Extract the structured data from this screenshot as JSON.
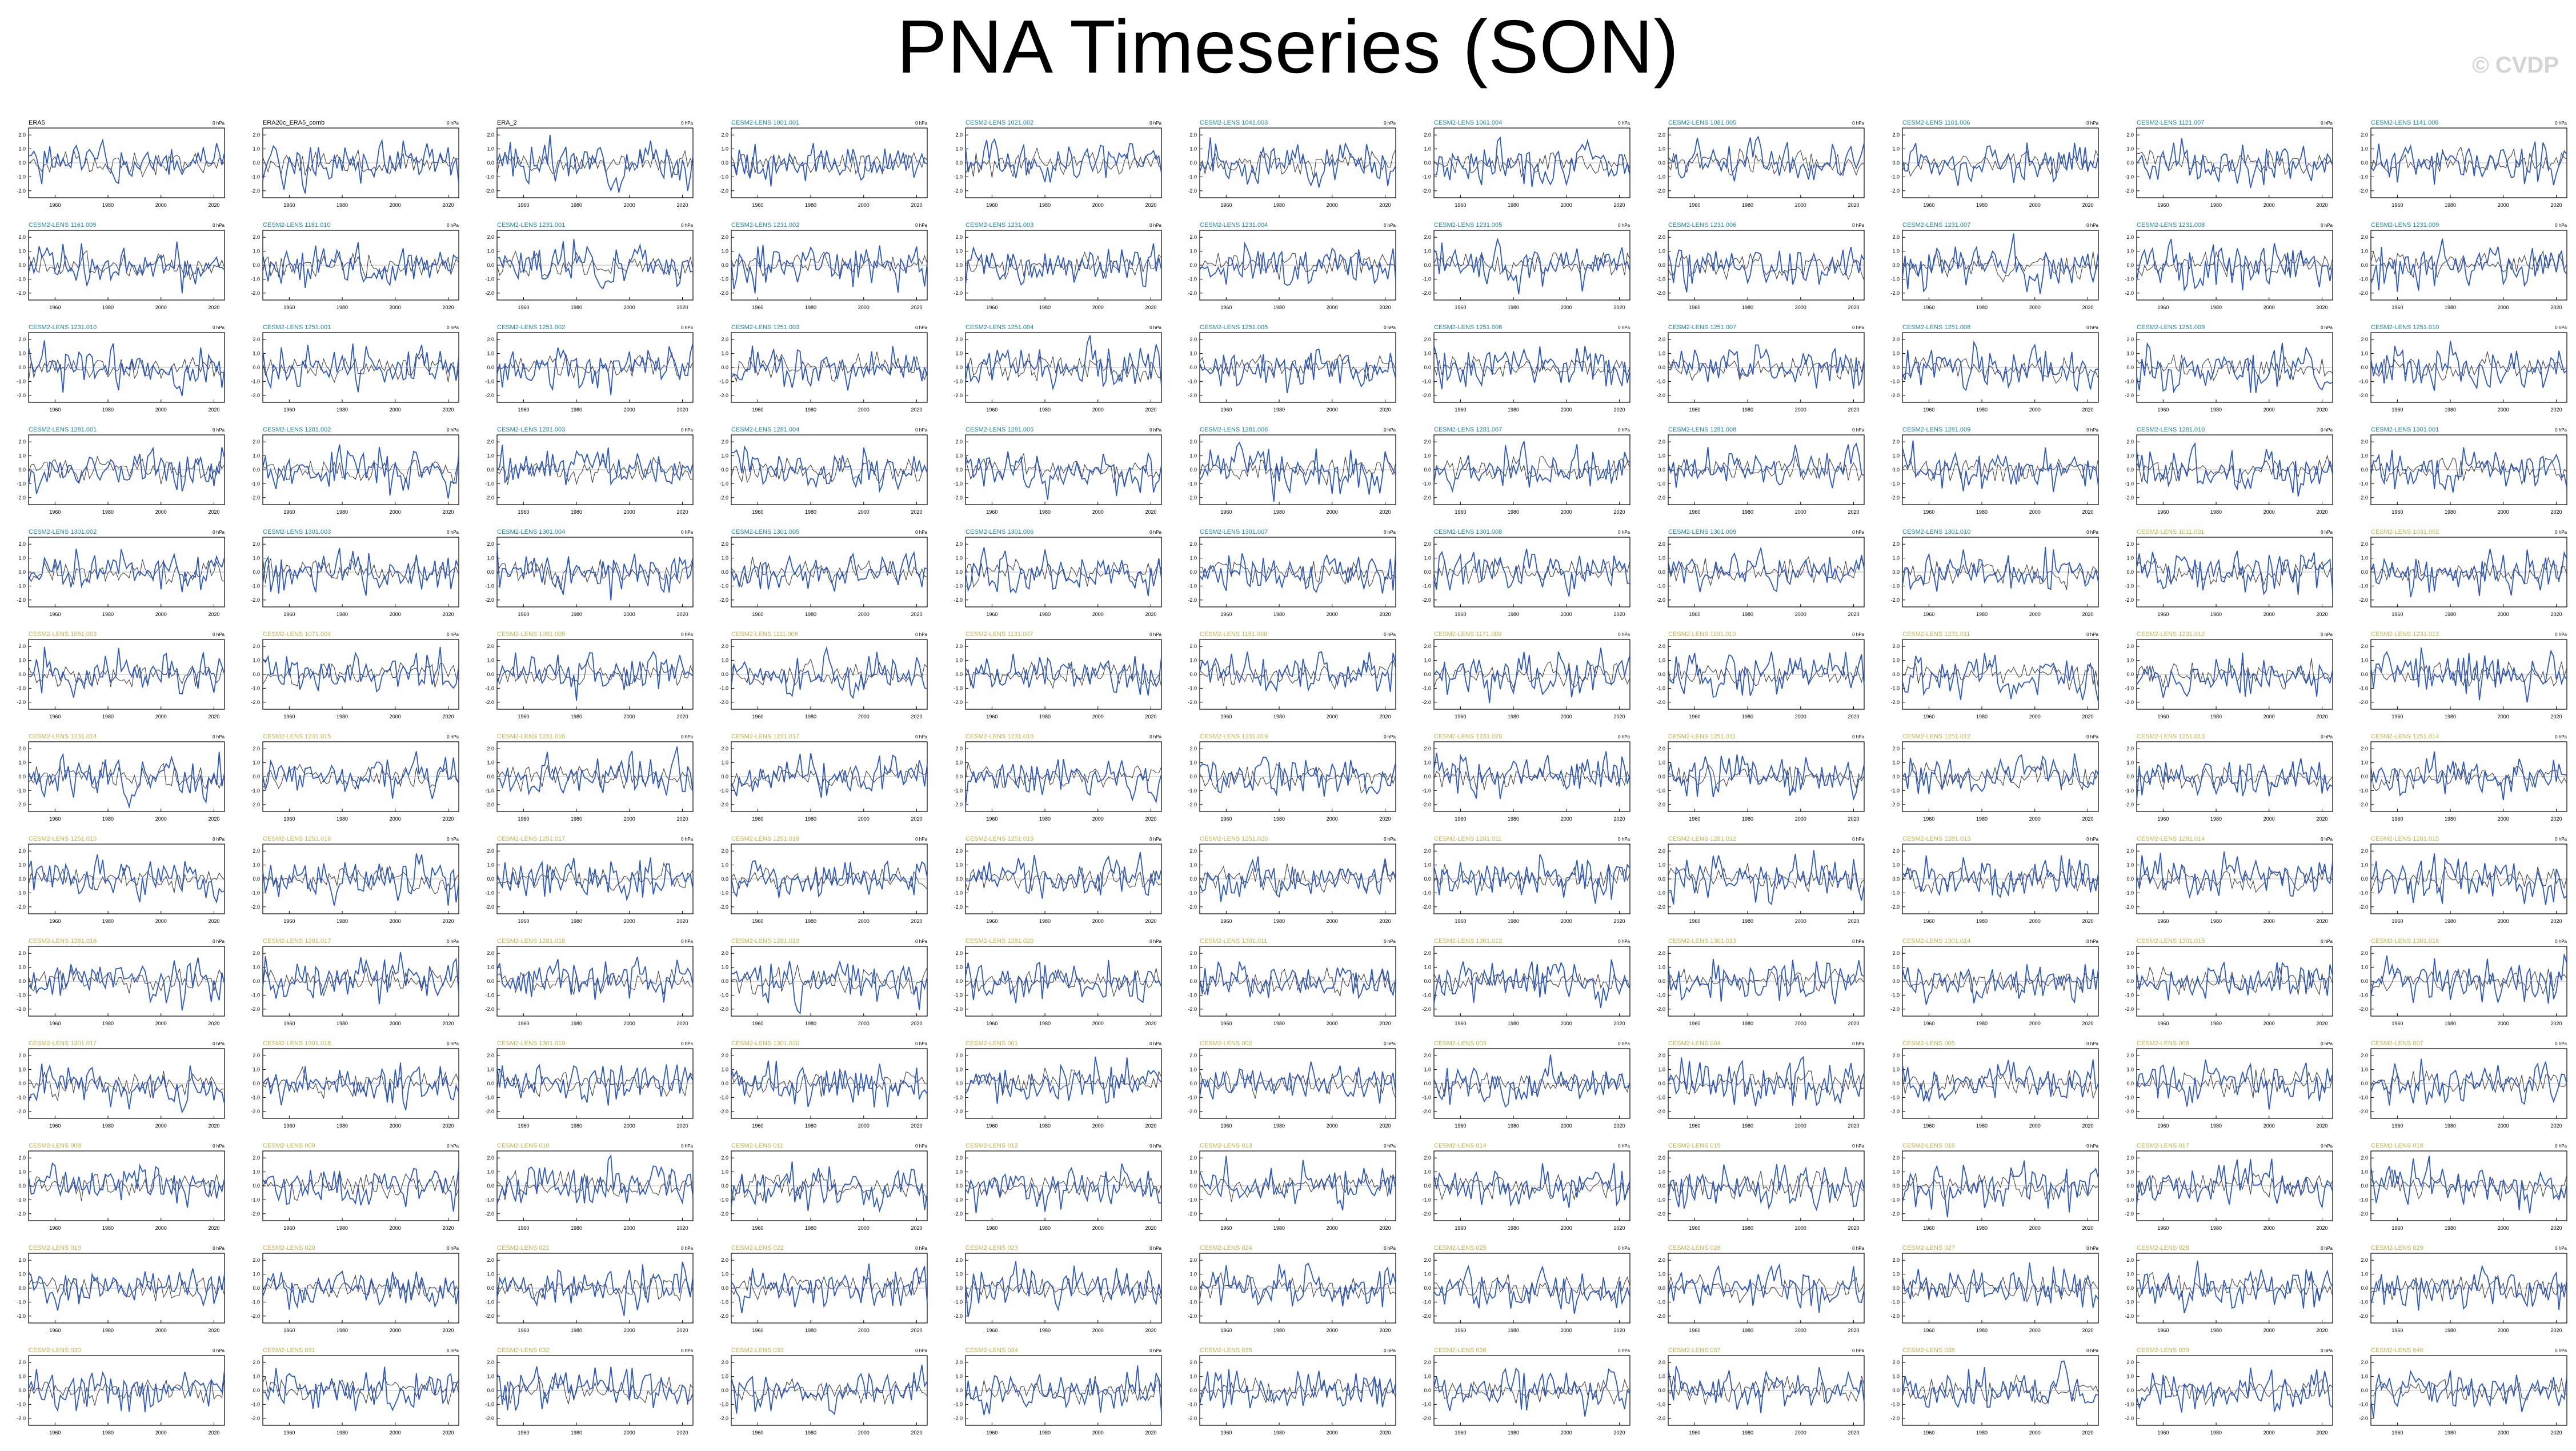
{
  "title": "PNA Timeseries (SON)",
  "watermark": "© CVDP",
  "colors": {
    "model": "#2c57c6",
    "obs": "#444444",
    "label_obs": "#000000",
    "label_a": "#1a86a5",
    "label_b": "#c9b04a",
    "frame": "#000000"
  },
  "chart_data": {
    "type": "line",
    "layout": "small-multiples-grid",
    "grid": {
      "rows": 13,
      "cols": 11
    },
    "xticks": [
      "1960",
      "1980",
      "2000",
      "2020"
    ],
    "xlim": [
      1950,
      2024
    ],
    "yticks": [
      "-2.0",
      "-1.0",
      "0.0",
      "1.0",
      "2.0"
    ],
    "ylim": [
      -2.5,
      2.5
    ],
    "unit_note": "0 hPa",
    "series_per_panel": [
      "model/obs PNA index (blue)",
      "observed reference (gray)"
    ],
    "panels": [
      {
        "name": "ERA5",
        "kind": "obs",
        "seed": 1
      },
      {
        "name": "ERA20c_ERA5_comb",
        "kind": "obs",
        "seed": 2
      },
      {
        "name": "ERA_2",
        "kind": "obs",
        "seed": 3
      },
      {
        "name": "CESM2-LENS 1001.001",
        "kind": "a",
        "seed": 4
      },
      {
        "name": "CESM2-LENS 1021.002",
        "kind": "a",
        "seed": 5
      },
      {
        "name": "CESM2-LENS 1041.003",
        "kind": "a",
        "seed": 6
      },
      {
        "name": "CESM2-LENS 1061.004",
        "kind": "a",
        "seed": 7
      },
      {
        "name": "CESM2-LENS 1081.005",
        "kind": "a",
        "seed": 8
      },
      {
        "name": "CESM2-LENS 1101.006",
        "kind": "a",
        "seed": 9
      },
      {
        "name": "CESM2-LENS 1121.007",
        "kind": "a",
        "seed": 10
      },
      {
        "name": "CESM2-LENS 1141.008",
        "kind": "a",
        "seed": 11
      },
      {
        "name": "CESM2-LENS 1161.009",
        "kind": "a",
        "seed": 12
      },
      {
        "name": "CESM2-LENS 1181.010",
        "kind": "a",
        "seed": 13
      },
      {
        "name": "CESM2-LENS 1231.001",
        "kind": "a",
        "seed": 14
      },
      {
        "name": "CESM2-LENS 1231.002",
        "kind": "a",
        "seed": 15
      },
      {
        "name": "CESM2-LENS 1231.003",
        "kind": "a",
        "seed": 16
      },
      {
        "name": "CESM2-LENS 1231.004",
        "kind": "a",
        "seed": 17
      },
      {
        "name": "CESM2-LENS 1231.005",
        "kind": "a",
        "seed": 18
      },
      {
        "name": "CESM2-LENS 1231.006",
        "kind": "a",
        "seed": 19
      },
      {
        "name": "CESM2-LENS 1231.007",
        "kind": "a",
        "seed": 20
      },
      {
        "name": "CESM2-LENS 1231.008",
        "kind": "a",
        "seed": 21
      },
      {
        "name": "CESM2-LENS 1231.009",
        "kind": "a",
        "seed": 22
      },
      {
        "name": "CESM2-LENS 1231.010",
        "kind": "a",
        "seed": 23
      },
      {
        "name": "CESM2-LENS 1251.001",
        "kind": "a",
        "seed": 24
      },
      {
        "name": "CESM2-LENS 1251.002",
        "kind": "a",
        "seed": 25
      },
      {
        "name": "CESM2-LENS 1251.003",
        "kind": "a",
        "seed": 26
      },
      {
        "name": "CESM2-LENS 1251.004",
        "kind": "a",
        "seed": 27
      },
      {
        "name": "CESM2-LENS 1251.005",
        "kind": "a",
        "seed": 28
      },
      {
        "name": "CESM2-LENS 1251.006",
        "kind": "a",
        "seed": 29
      },
      {
        "name": "CESM2-LENS 1251.007",
        "kind": "a",
        "seed": 30
      },
      {
        "name": "CESM2-LENS 1251.008",
        "kind": "a",
        "seed": 31
      },
      {
        "name": "CESM2-LENS 1251.009",
        "kind": "a",
        "seed": 32
      },
      {
        "name": "CESM2-LENS 1251.010",
        "kind": "a",
        "seed": 33
      },
      {
        "name": "CESM2-LENS 1281.001",
        "kind": "a",
        "seed": 34
      },
      {
        "name": "CESM2-LENS 1281.002",
        "kind": "a",
        "seed": 35
      },
      {
        "name": "CESM2-LENS 1281.003",
        "kind": "a",
        "seed": 36
      },
      {
        "name": "CESM2-LENS 1281.004",
        "kind": "a",
        "seed": 37
      },
      {
        "name": "CESM2-LENS 1281.005",
        "kind": "a",
        "seed": 38
      },
      {
        "name": "CESM2-LENS 1281.006",
        "kind": "a",
        "seed": 39
      },
      {
        "name": "CESM2-LENS 1281.007",
        "kind": "a",
        "seed": 40
      },
      {
        "name": "CESM2-LENS 1281.008",
        "kind": "a",
        "seed": 41
      },
      {
        "name": "CESM2-LENS 1281.009",
        "kind": "a",
        "seed": 42
      },
      {
        "name": "CESM2-LENS 1281.010",
        "kind": "a",
        "seed": 43
      },
      {
        "name": "CESM2-LENS 1301.001",
        "kind": "a",
        "seed": 44
      },
      {
        "name": "CESM2-LENS 1301.002",
        "kind": "a",
        "seed": 45
      },
      {
        "name": "CESM2-LENS 1301.003",
        "kind": "a",
        "seed": 46
      },
      {
        "name": "CESM2-LENS 1301.004",
        "kind": "a",
        "seed": 47
      },
      {
        "name": "CESM2-LENS 1301.005",
        "kind": "a",
        "seed": 48
      },
      {
        "name": "CESM2-LENS 1301.006",
        "kind": "a",
        "seed": 49
      },
      {
        "name": "CESM2-LENS 1301.007",
        "kind": "a",
        "seed": 50
      },
      {
        "name": "CESM2-LENS 1301.008",
        "kind": "a",
        "seed": 51
      },
      {
        "name": "CESM2-LENS 1301.009",
        "kind": "a",
        "seed": 52
      },
      {
        "name": "CESM2-LENS 1301.010",
        "kind": "a",
        "seed": 53
      },
      {
        "name": "CESM2-LENS 1011.001",
        "kind": "b",
        "seed": 54
      },
      {
        "name": "CESM2-LENS 1031.002",
        "kind": "b",
        "seed": 55
      },
      {
        "name": "CESM2-LENS 1051.003",
        "kind": "b",
        "seed": 56
      },
      {
        "name": "CESM2-LENS 1071.004",
        "kind": "b",
        "seed": 57
      },
      {
        "name": "CESM2-LENS 1091.005",
        "kind": "b",
        "seed": 58
      },
      {
        "name": "CESM2-LENS 1111.006",
        "kind": "b",
        "seed": 59
      },
      {
        "name": "CESM2-LENS 1131.007",
        "kind": "b",
        "seed": 60
      },
      {
        "name": "CESM2-LENS 1151.008",
        "kind": "b",
        "seed": 61
      },
      {
        "name": "CESM2-LENS 1171.009",
        "kind": "b",
        "seed": 62
      },
      {
        "name": "CESM2-LENS 1191.010",
        "kind": "b",
        "seed": 63
      },
      {
        "name": "CESM2-LENS 1231.011",
        "kind": "b",
        "seed": 64
      },
      {
        "name": "CESM2-LENS 1231.012",
        "kind": "b",
        "seed": 65
      },
      {
        "name": "CESM2-LENS 1231.013",
        "kind": "b",
        "seed": 66
      },
      {
        "name": "CESM2-LENS 1231.014",
        "kind": "b",
        "seed": 67
      },
      {
        "name": "CESM2-LENS 1231.015",
        "kind": "b",
        "seed": 68
      },
      {
        "name": "CESM2-LENS 1231.016",
        "kind": "b",
        "seed": 69
      },
      {
        "name": "CESM2-LENS 1231.017",
        "kind": "b",
        "seed": 70
      },
      {
        "name": "CESM2-LENS 1231.018",
        "kind": "b",
        "seed": 71
      },
      {
        "name": "CESM2-LENS 1231.019",
        "kind": "b",
        "seed": 72
      },
      {
        "name": "CESM2-LENS 1231.020",
        "kind": "b",
        "seed": 73
      },
      {
        "name": "CESM2-LENS 1251.011",
        "kind": "b",
        "seed": 74
      },
      {
        "name": "CESM2-LENS 1251.012",
        "kind": "b",
        "seed": 75
      },
      {
        "name": "CESM2-LENS 1251.013",
        "kind": "b",
        "seed": 76
      },
      {
        "name": "CESM2-LENS 1251.014",
        "kind": "b",
        "seed": 77
      },
      {
        "name": "CESM2-LENS 1251.015",
        "kind": "b",
        "seed": 78
      },
      {
        "name": "CESM2-LENS 1251.016",
        "kind": "b",
        "seed": 79
      },
      {
        "name": "CESM2-LENS 1251.017",
        "kind": "b",
        "seed": 80
      },
      {
        "name": "CESM2-LENS 1251.018",
        "kind": "b",
        "seed": 81
      },
      {
        "name": "CESM2-LENS 1251.019",
        "kind": "b",
        "seed": 82
      },
      {
        "name": "CESM2-LENS 1251.020",
        "kind": "b",
        "seed": 83
      },
      {
        "name": "CESM2-LENS 1281.011",
        "kind": "b",
        "seed": 84
      },
      {
        "name": "CESM2-LENS 1281.012",
        "kind": "b",
        "seed": 85
      },
      {
        "name": "CESM2-LENS 1281.013",
        "kind": "b",
        "seed": 86
      },
      {
        "name": "CESM2-LENS 1281.014",
        "kind": "b",
        "seed": 87
      },
      {
        "name": "CESM2-LENS 1281.015",
        "kind": "b",
        "seed": 88
      },
      {
        "name": "CESM2-LENS 1281.016",
        "kind": "b",
        "seed": 89
      },
      {
        "name": "CESM2-LENS 1281.017",
        "kind": "b",
        "seed": 90
      },
      {
        "name": "CESM2-LENS 1281.018",
        "kind": "b",
        "seed": 91
      },
      {
        "name": "CESM2-LENS 1281.019",
        "kind": "b",
        "seed": 92
      },
      {
        "name": "CESM2-LENS 1281.020",
        "kind": "b",
        "seed": 93
      },
      {
        "name": "CESM2-LENS 1301.011",
        "kind": "b",
        "seed": 94
      },
      {
        "name": "CESM2-LENS 1301.012",
        "kind": "b",
        "seed": 95
      },
      {
        "name": "CESM2-LENS 1301.013",
        "kind": "b",
        "seed": 96
      },
      {
        "name": "CESM2-LENS 1301.014",
        "kind": "b",
        "seed": 97
      },
      {
        "name": "CESM2-LENS 1301.015",
        "kind": "b",
        "seed": 98
      },
      {
        "name": "CESM2-LENS 1301.016",
        "kind": "b",
        "seed": 99
      },
      {
        "name": "CESM2-LENS 1301.017",
        "kind": "b",
        "seed": 100
      },
      {
        "name": "CESM2-LENS 1301.018",
        "kind": "b",
        "seed": 101
      },
      {
        "name": "CESM2-LENS 1301.019",
        "kind": "b",
        "seed": 102
      },
      {
        "name": "CESM2-LENS 1301.020",
        "kind": "b",
        "seed": 103
      },
      {
        "name": "CESM2-LENS 001",
        "kind": "b",
        "seed": 104
      },
      {
        "name": "CESM2-LENS 002",
        "kind": "b",
        "seed": 105
      },
      {
        "name": "CESM2-LENS 003",
        "kind": "b",
        "seed": 106
      },
      {
        "name": "CESM2-LENS 004",
        "kind": "b",
        "seed": 107
      },
      {
        "name": "CESM2-LENS 005",
        "kind": "b",
        "seed": 108
      },
      {
        "name": "CESM2-LENS 006",
        "kind": "b",
        "seed": 109
      },
      {
        "name": "CESM2-LENS 007",
        "kind": "b",
        "seed": 110
      },
      {
        "name": "CESM2-LENS 008",
        "kind": "b",
        "seed": 111
      },
      {
        "name": "CESM2-LENS 009",
        "kind": "b",
        "seed": 112
      },
      {
        "name": "CESM2-LENS 010",
        "kind": "b",
        "seed": 113
      },
      {
        "name": "CESM2-LENS 011",
        "kind": "b",
        "seed": 114
      },
      {
        "name": "CESM2-LENS 012",
        "kind": "b",
        "seed": 115
      },
      {
        "name": "CESM2-LENS 013",
        "kind": "b",
        "seed": 116
      },
      {
        "name": "CESM2-LENS 014",
        "kind": "b",
        "seed": 117
      },
      {
        "name": "CESM2-LENS 015",
        "kind": "b",
        "seed": 118
      },
      {
        "name": "CESM2-LENS 016",
        "kind": "b",
        "seed": 119
      },
      {
        "name": "CESM2-LENS 017",
        "kind": "b",
        "seed": 120
      },
      {
        "name": "CESM2-LENS 018",
        "kind": "b",
        "seed": 121
      },
      {
        "name": "CESM2-LENS 019",
        "kind": "b",
        "seed": 122
      },
      {
        "name": "CESM2-LENS 020",
        "kind": "b",
        "seed": 123
      },
      {
        "name": "CESM2-LENS 021",
        "kind": "b",
        "seed": 124
      },
      {
        "name": "CESM2-LENS 022",
        "kind": "b",
        "seed": 125
      },
      {
        "name": "CESM2-LENS 023",
        "kind": "b",
        "seed": 126
      },
      {
        "name": "CESM2-LENS 024",
        "kind": "b",
        "seed": 127
      },
      {
        "name": "CESM2-LENS 025",
        "kind": "b",
        "seed": 128
      },
      {
        "name": "CESM2-LENS 026",
        "kind": "b",
        "seed": 129
      },
      {
        "name": "CESM2-LENS 027",
        "kind": "b",
        "seed": 130
      },
      {
        "name": "CESM2-LENS 028",
        "kind": "b",
        "seed": 131
      },
      {
        "name": "CESM2-LENS 029",
        "kind": "b",
        "seed": 132
      },
      {
        "name": "CESM2-LENS 030",
        "kind": "b",
        "seed": 133
      },
      {
        "name": "CESM2-LENS 031",
        "kind": "b",
        "seed": 134
      },
      {
        "name": "CESM2-LENS 032",
        "kind": "b",
        "seed": 135
      },
      {
        "name": "CESM2-LENS 033",
        "kind": "b",
        "seed": 136
      },
      {
        "name": "CESM2-LENS 034",
        "kind": "b",
        "seed": 137
      },
      {
        "name": "CESM2-LENS 035",
        "kind": "b",
        "seed": 138
      },
      {
        "name": "CESM2-LENS 036",
        "kind": "b",
        "seed": 139
      },
      {
        "name": "CESM2-LENS 037",
        "kind": "b",
        "seed": 140
      },
      {
        "name": "CESM2-LENS 038",
        "kind": "b",
        "seed": 141
      },
      {
        "name": "CESM2-LENS 039",
        "kind": "b",
        "seed": 142
      },
      {
        "name": "CESM2-LENS 040",
        "kind": "b",
        "seed": 143
      }
    ]
  }
}
